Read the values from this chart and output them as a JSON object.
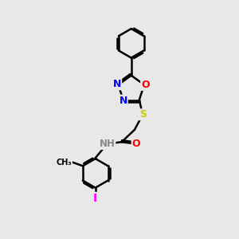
{
  "bg_color": "#e8e8e8",
  "bond_color": "#000000",
  "bond_width": 1.8,
  "atom_colors": {
    "N": "#0000ff",
    "O": "#ff0000",
    "S": "#cccc00",
    "I": "#ff00ff",
    "H": "#888888",
    "C": "#000000"
  },
  "font_size": 9
}
